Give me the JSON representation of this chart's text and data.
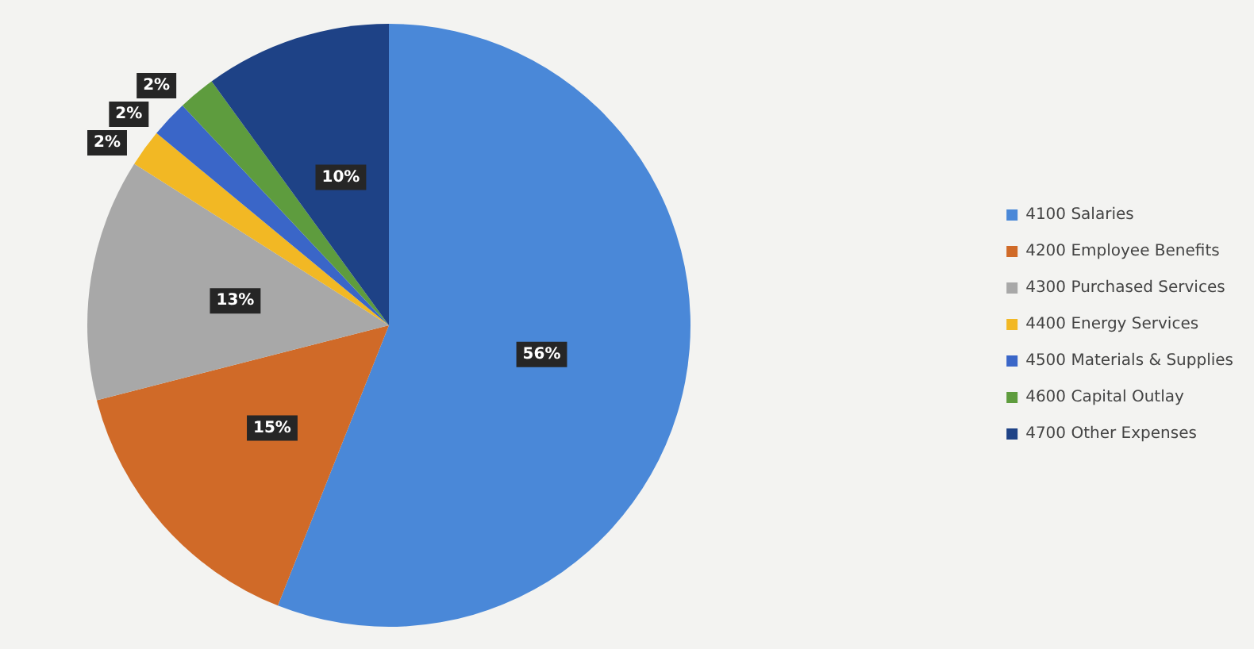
{
  "chart_data": {
    "type": "pie",
    "categories": [
      "4100 Salaries",
      "4200 Employee Benefits",
      "4300 Purchased Services",
      "4400 Energy Services",
      "4500 Materials & Supplies",
      "4600 Capital Outlay",
      "4700 Other Expenses"
    ],
    "values": [
      56,
      15,
      13,
      2,
      2,
      2,
      10
    ],
    "value_labels": [
      "56%",
      "15%",
      "13%",
      "2%",
      "2%",
      "2%",
      "10%"
    ],
    "colors": [
      "#4a88d8",
      "#d06a28",
      "#a8a8a8",
      "#f2b824",
      "#3a66c8",
      "#5e9c3e",
      "#1e4286"
    ],
    "legend": "right"
  }
}
